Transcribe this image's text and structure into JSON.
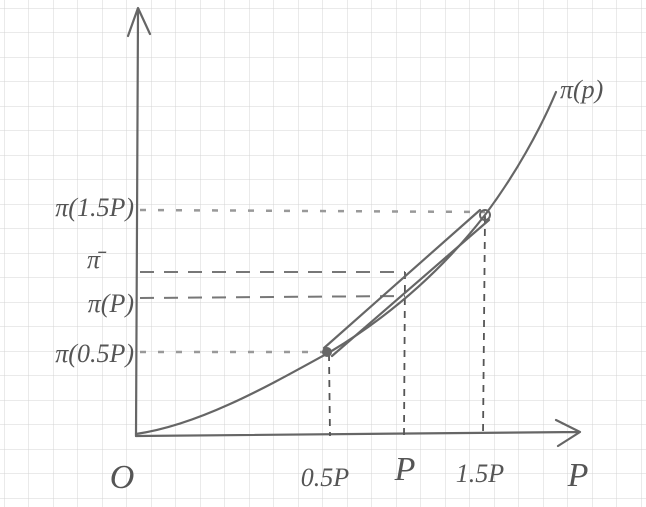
{
  "y_axis_labels": [
    "π(1.5P)",
    "π̄",
    "π(P)",
    "π(0.5P)"
  ],
  "x_axis_labels": [
    "O",
    "0.5P",
    "P",
    "1.5P"
  ],
  "x_axis_title": "P",
  "curve_label": "π(p)"
}
